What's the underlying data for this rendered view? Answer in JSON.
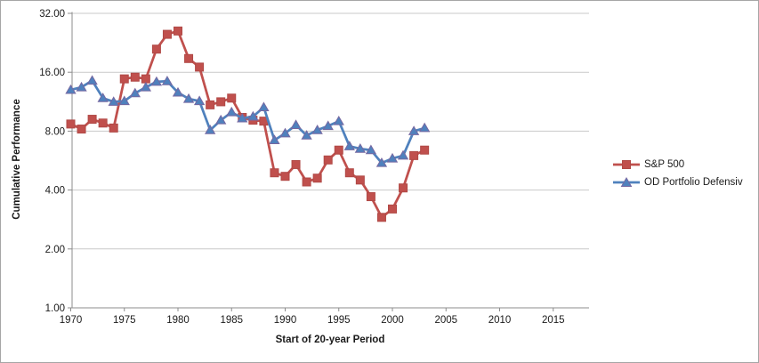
{
  "chart_data": {
    "type": "line",
    "title": "",
    "xlabel": "Start of 20-year Period",
    "ylabel": "Cumulative Performance",
    "y_scale": "log2",
    "y_ticks": [
      1,
      2,
      4,
      8,
      16,
      32
    ],
    "y_tick_labels": [
      "1.00",
      "2.00",
      "4.00",
      "8.00",
      "16.00",
      "32.00"
    ],
    "ylim": [
      1,
      32
    ],
    "x_ticks": [
      1970,
      1975,
      1980,
      1985,
      1990,
      1995,
      2000,
      2005,
      2010,
      2015
    ],
    "x_range": [
      1970,
      2018
    ],
    "grid": "horizontal",
    "grid_color": "#c9c9c9",
    "axis_color": "#8c8c8c",
    "legend_position": "right",
    "x": [
      1970,
      1971,
      1972,
      1973,
      1974,
      1975,
      1976,
      1977,
      1978,
      1979,
      1980,
      1981,
      1982,
      1983,
      1984,
      1985,
      1986,
      1987,
      1988,
      1989,
      1990,
      1991,
      1992,
      1993,
      1994,
      1995,
      1996,
      1997,
      1998,
      1999,
      2000,
      2001,
      2002,
      2003
    ],
    "series": [
      {
        "name": "S&P 500",
        "color": "#c0504d",
        "marker": "square",
        "marker_stroke": "#b04946",
        "values": [
          8.7,
          8.2,
          9.2,
          8.8,
          8.3,
          14.8,
          15.1,
          14.8,
          21.0,
          25.0,
          26.0,
          18.8,
          17.0,
          10.9,
          11.3,
          11.8,
          9.4,
          9.1,
          9.0,
          4.9,
          4.7,
          5.4,
          4.4,
          4.6,
          5.7,
          6.4,
          4.9,
          4.5,
          3.7,
          2.9,
          3.2,
          4.1,
          6.0,
          6.4
        ]
      },
      {
        "name": "OD Portfolio Defensiv",
        "color": "#4f81bd",
        "marker": "triangle",
        "marker_stroke": "#7668a1",
        "values": [
          13.0,
          13.4,
          14.5,
          11.8,
          11.3,
          11.4,
          12.5,
          13.4,
          14.3,
          14.4,
          12.6,
          11.7,
          11.4,
          8.1,
          9.1,
          10.0,
          9.3,
          9.5,
          10.6,
          7.2,
          7.8,
          8.6,
          7.6,
          8.1,
          8.5,
          9.0,
          6.7,
          6.5,
          6.4,
          5.5,
          5.8,
          6.0,
          8.0,
          8.3
        ]
      }
    ]
  }
}
